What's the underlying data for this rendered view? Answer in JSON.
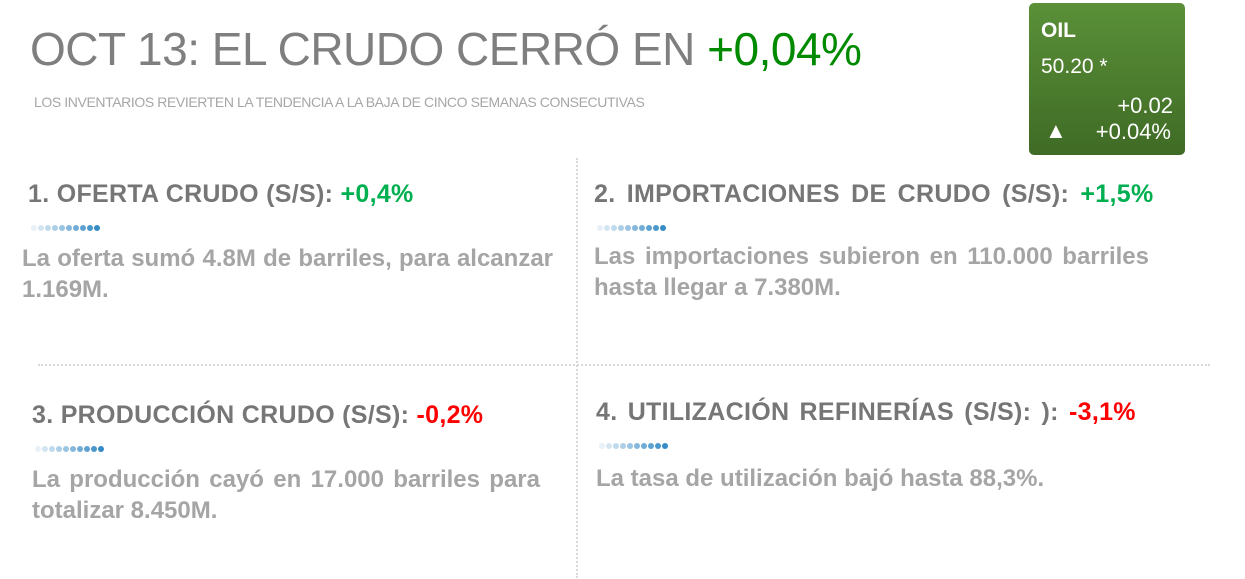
{
  "header": {
    "title": "OCT 13: EL CRUDO CERRÓ EN ",
    "title_change": "+0,04%",
    "subtitle": "LOS INVENTARIOS REVIERTEN LA TENDENCIA A LA BAJA DE CINCO SEMANAS CONSECUTIVAS"
  },
  "ticker": {
    "symbol": "OIL",
    "price": "50.20 *",
    "change": "+0.02",
    "change_pct": "+0.04%",
    "arrow_icon": "triangle-up",
    "color": "#4a7c2e"
  },
  "colors": {
    "positive": "#00b050",
    "negative": "#ff0000",
    "title_positive": "#008a00"
  },
  "sections": [
    {
      "heading": "1. OFERTA CRUDO (S/S): ",
      "value": "+0,4%",
      "direction": "up",
      "text": "La oferta sumó 4.8M de barriles, para alcanzar 1.169M."
    },
    {
      "heading": "2. IMPORTACIONES DE CRUDO (S/S): ",
      "value": "+1,5%",
      "direction": "up",
      "text": "Las importaciones subieron en 110.000 barriles hasta llegar a 7.380M."
    },
    {
      "heading": "3. PRODUCCIÓN CRUDO (S/S): ",
      "value": "-0,2%",
      "direction": "down",
      "text": "La producción cayó en 17.000 barriles para totalizar 8.450M."
    },
    {
      "heading": "4. UTILIZACIÓN REFINERÍAS (S/S): ): ",
      "value": "-3,1%",
      "direction": "down",
      "text": "La tasa de utilización bajó hasta 88,3%."
    }
  ]
}
